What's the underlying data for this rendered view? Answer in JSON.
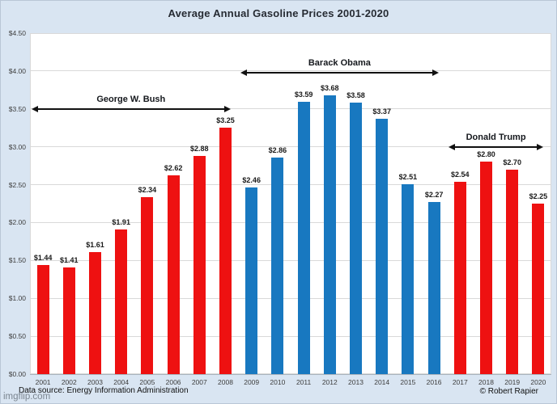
{
  "page": {
    "title": "Average Annual Gasoline Prices 2001-2020",
    "footer_source": "Data source: Energy Information Administration",
    "footer_credit": "© Robert Rapier",
    "watermark": "imgflip.com"
  },
  "colors": {
    "background": "#d9e5f2",
    "plot_background": "#ffffff",
    "republican_red": "#ee1111",
    "democrat_blue": "#1878c0",
    "gridline": "#d9d9d9",
    "axis_line": "#a9b3bd",
    "arrow_black": "#111111"
  },
  "chart_data": {
    "type": "bar",
    "title": "Average Annual Gasoline Prices 2001-2020",
    "categories": [
      "2001",
      "2002",
      "2003",
      "2004",
      "2005",
      "2006",
      "2007",
      "2008",
      "2009",
      "2010",
      "2011",
      "2012",
      "2013",
      "2014",
      "2015",
      "2016",
      "2017",
      "2018",
      "2019",
      "2020"
    ],
    "values": [
      1.44,
      1.41,
      1.61,
      1.91,
      2.34,
      2.62,
      2.88,
      3.25,
      2.46,
      2.86,
      3.59,
      3.68,
      3.58,
      3.37,
      2.51,
      2.27,
      2.54,
      2.8,
      2.7,
      2.25
    ],
    "value_labels": [
      "$1.44",
      "$1.41",
      "$1.61",
      "$1.91",
      "$2.34",
      "$2.62",
      "$2.88",
      "$3.25",
      "$2.46",
      "$2.86",
      "$3.59",
      "$3.68",
      "$3.58",
      "$3.37",
      "$2.51",
      "$2.27",
      "$2.54",
      "$2.80",
      "$2.70",
      "$2.25"
    ],
    "bar_colors": [
      "#ee1111",
      "#ee1111",
      "#ee1111",
      "#ee1111",
      "#ee1111",
      "#ee1111",
      "#ee1111",
      "#ee1111",
      "#1878c0",
      "#1878c0",
      "#1878c0",
      "#1878c0",
      "#1878c0",
      "#1878c0",
      "#1878c0",
      "#1878c0",
      "#ee1111",
      "#ee1111",
      "#ee1111",
      "#ee1111"
    ],
    "xlabel": "",
    "ylabel": "",
    "ylim": [
      0,
      4.5
    ],
    "ytick_step": 0.5,
    "ytick_labels": [
      "$0.00",
      "$0.50",
      "$1.00",
      "$1.50",
      "$2.00",
      "$2.50",
      "$3.00",
      "$3.50",
      "$4.00",
      "$4.50"
    ],
    "grid": true,
    "legend": false,
    "annotations": [
      {
        "label": "George W. Bush",
        "start_year": "2001",
        "end_year": "2008",
        "arrow_y_dollars": 3.5
      },
      {
        "label": "Barack Obama",
        "start_year": "2009",
        "end_year": "2016",
        "arrow_y_dollars": 3.98
      },
      {
        "label": "Donald Trump",
        "start_year": "2017",
        "end_year": "2020",
        "arrow_y_dollars": 3.0
      }
    ]
  }
}
